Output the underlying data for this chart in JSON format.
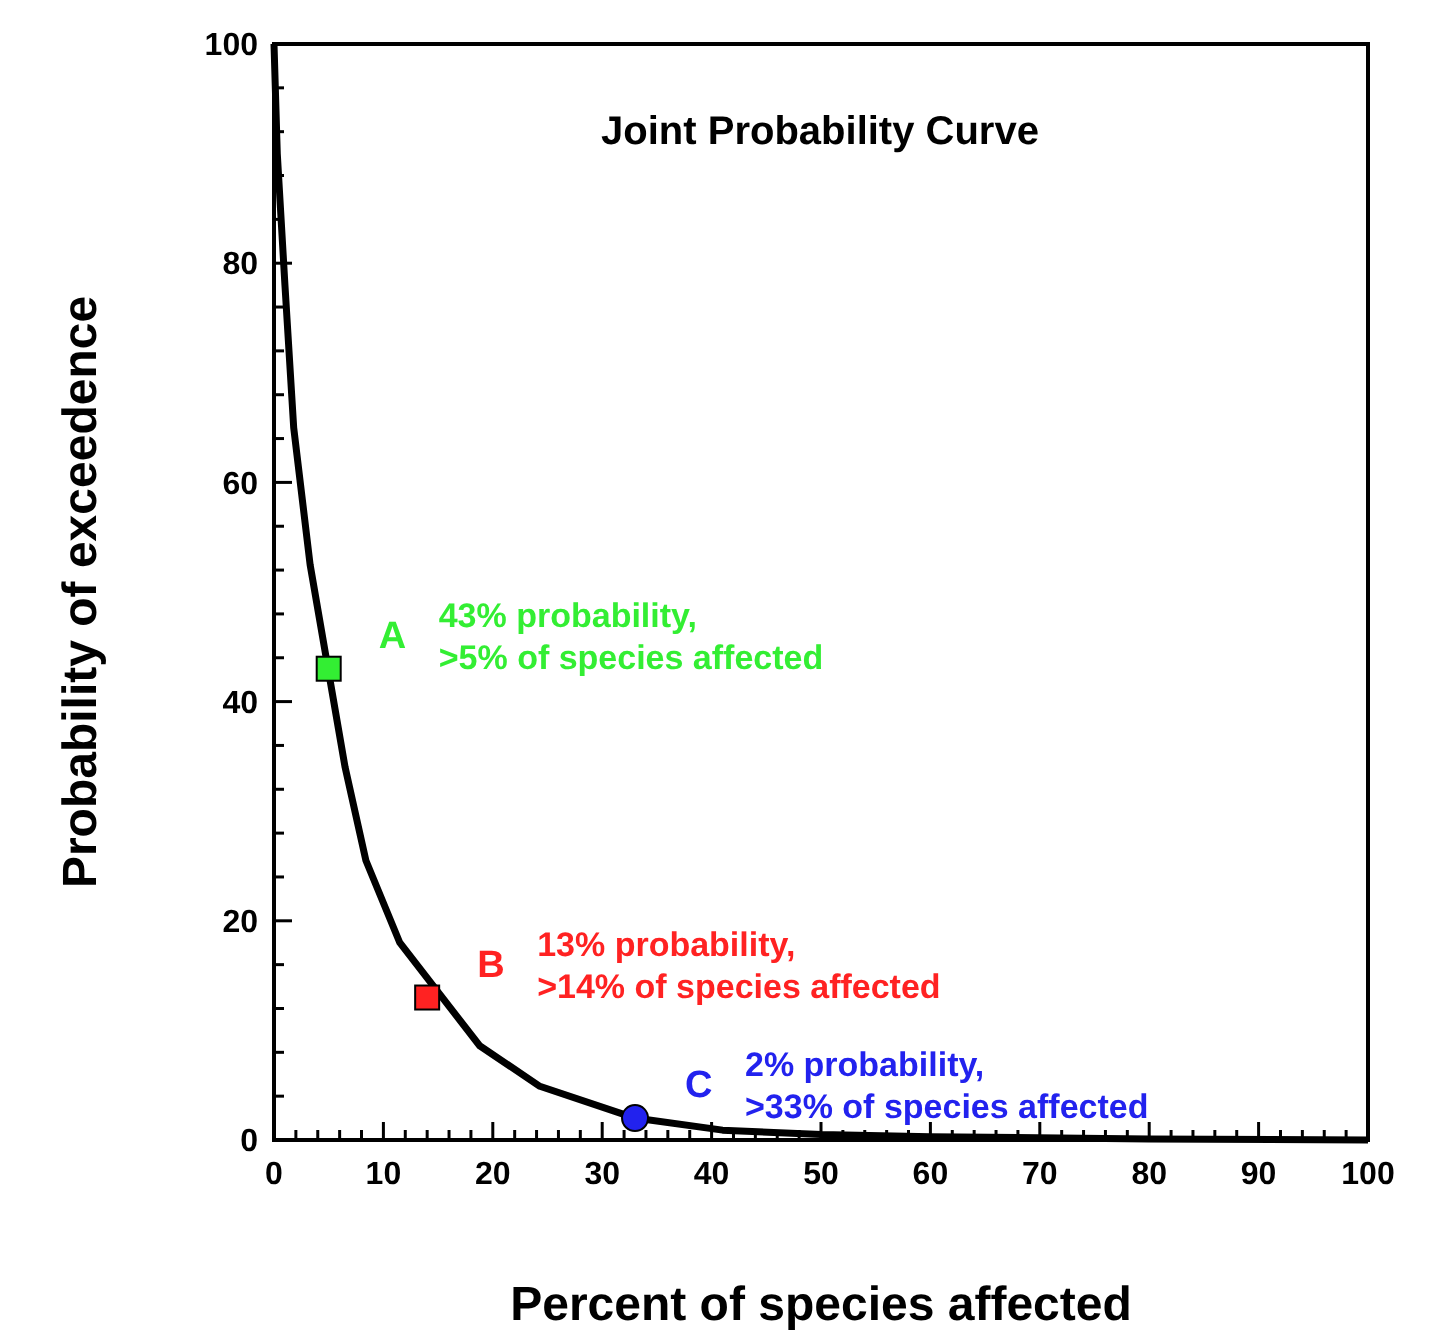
{
  "chart_data": {
    "type": "line",
    "title": "Joint Probability Curve",
    "xlabel": "Percent of species affected",
    "ylabel": "Probability of exceedence",
    "xlim": [
      0,
      100
    ],
    "ylim": [
      0,
      100
    ],
    "xticks": [
      0,
      {
        "value": 2,
        "label": null
      },
      {
        "value": 4,
        "label": null
      },
      {
        "value": 6,
        "label": null
      },
      {
        "value": 8,
        "label": null
      },
      10,
      {
        "value": 12,
        "label": null
      },
      {
        "value": 14,
        "label": null
      },
      {
        "value": 16,
        "label": null
      },
      {
        "value": 18,
        "label": null
      },
      20,
      {
        "value": 22,
        "label": null
      },
      {
        "value": 24,
        "label": null
      },
      {
        "value": 26,
        "label": null
      },
      {
        "value": 28,
        "label": null
      },
      30,
      {
        "value": 32,
        "label": null
      },
      {
        "value": 34,
        "label": null
      },
      {
        "value": 36,
        "label": null
      },
      {
        "value": 38,
        "label": null
      },
      40,
      {
        "value": 42,
        "label": null
      },
      {
        "value": 44,
        "label": null
      },
      {
        "value": 46,
        "label": null
      },
      {
        "value": 48,
        "label": null
      },
      50,
      {
        "value": 52,
        "label": null
      },
      {
        "value": 54,
        "label": null
      },
      {
        "value": 56,
        "label": null
      },
      {
        "value": 58,
        "label": null
      },
      60,
      {
        "value": 62,
        "label": null
      },
      {
        "value": 64,
        "label": null
      },
      {
        "value": 66,
        "label": null
      },
      {
        "value": 68,
        "label": null
      },
      70,
      {
        "value": 72,
        "label": null
      },
      {
        "value": 74,
        "label": null
      },
      {
        "value": 76,
        "label": null
      },
      {
        "value": 78,
        "label": null
      },
      80,
      {
        "value": 82,
        "label": null
      },
      {
        "value": 84,
        "label": null
      },
      {
        "value": 86,
        "label": null
      },
      {
        "value": 88,
        "label": null
      },
      90,
      {
        "value": 92,
        "label": null
      },
      {
        "value": 94,
        "label": null
      },
      {
        "value": 96,
        "label": null
      },
      {
        "value": 98,
        "label": null
      },
      100
    ],
    "yticks": [
      0,
      {
        "value": 4,
        "label": null
      },
      {
        "value": 8,
        "label": null
      },
      {
        "value": 12,
        "label": null
      },
      {
        "value": 16,
        "label": null
      },
      20,
      {
        "value": 24,
        "label": null
      },
      {
        "value": 28,
        "label": null
      },
      {
        "value": 32,
        "label": null
      },
      {
        "value": 36,
        "label": null
      },
      40,
      {
        "value": 44,
        "label": null
      },
      {
        "value": 48,
        "label": null
      },
      {
        "value": 52,
        "label": null
      },
      {
        "value": 56,
        "label": null
      },
      60,
      {
        "value": 64,
        "label": null
      },
      {
        "value": 68,
        "label": null
      },
      {
        "value": 72,
        "label": null
      },
      {
        "value": 76,
        "label": null
      },
      80,
      {
        "value": 84,
        "label": null
      },
      {
        "value": 88,
        "label": null
      },
      {
        "value": 92,
        "label": null
      },
      {
        "value": 96,
        "label": null
      },
      100
    ],
    "grid": false,
    "series": [
      {
        "color": "#000000",
        "x": [
          0,
          0.3,
          1,
          1.8,
          3.3,
          6.5,
          8.4,
          11.5,
          18.8,
          24.3,
          33,
          41,
          50,
          60,
          80,
          100
        ],
        "values": [
          100,
          90,
          78,
          65,
          52.5,
          34,
          25.5,
          18,
          8.6,
          4.9,
          2,
          0.9,
          0.5,
          0.3,
          0.1,
          0
        ]
      },
      {
        "type": "scatter",
        "name": "A",
        "color": "#33ee33",
        "marker": "square",
        "x": [
          5
        ],
        "values": [
          43
        ]
      },
      {
        "type": "scatter",
        "name": "B",
        "color": "#ff2222",
        "marker": "square",
        "x": [
          14
        ],
        "values": [
          13
        ]
      },
      {
        "type": "scatter",
        "name": "C",
        "color": "#2222ee",
        "marker": "circle",
        "x": [
          33
        ],
        "values": [
          2
        ]
      }
    ],
    "annotations": [
      "43% probability,\n>5% of species affected",
      "13% probability,\n>14% of species affected",
      "2% probability,\n>33% of species affected"
    ]
  }
}
